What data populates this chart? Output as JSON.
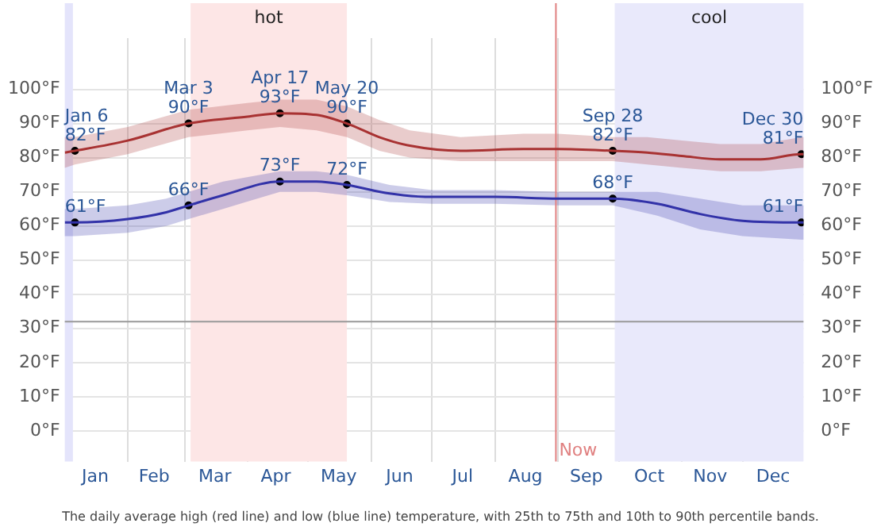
{
  "chart_data": {
    "type": "line",
    "xlim": [
      "--01-01",
      "--12-31"
    ],
    "xticks": [
      {
        "value": "--01-16",
        "label": "Jan"
      },
      {
        "value": "--02-01",
        "label": null
      },
      {
        "value": "--02-14",
        "label": "Feb"
      },
      {
        "value": "--03-01",
        "label": null
      },
      {
        "value": "--03-16",
        "label": "Mar"
      },
      {
        "value": "--04-01",
        "label": null
      },
      {
        "value": "--04-15",
        "label": "Apr"
      },
      {
        "value": "--05-01",
        "label": null
      },
      {
        "value": "--05-16",
        "label": "May"
      },
      {
        "value": "--06-01",
        "label": null
      },
      {
        "value": "--06-15",
        "label": "Jun"
      },
      {
        "value": "--07-01",
        "label": null
      },
      {
        "value": "--07-16",
        "label": "Jul"
      },
      {
        "value": "--08-01",
        "label": null
      },
      {
        "value": "--08-16",
        "label": "Aug"
      },
      {
        "value": "--09-01",
        "label": null
      },
      {
        "value": "--09-15",
        "label": "Sep"
      },
      {
        "value": "--10-01",
        "label": null
      },
      {
        "value": "--10-16",
        "label": "Oct"
      },
      {
        "value": "--11-01",
        "label": null
      },
      {
        "value": "--11-15",
        "label": "Nov"
      },
      {
        "value": "--12-01",
        "label": null
      },
      {
        "value": "--12-16",
        "label": "Dec"
      }
    ],
    "ylim": [
      -9,
      115
    ],
    "yticks": [
      {
        "value": 0,
        "label": "0°F"
      },
      {
        "value": 10,
        "label": "10°F"
      },
      {
        "value": 20,
        "label": "20°F"
      },
      {
        "value": 30,
        "label": "30°F"
      },
      {
        "value": 40,
        "label": "40°F"
      },
      {
        "value": 50,
        "label": "50°F"
      },
      {
        "value": 60,
        "label": "60°F"
      },
      {
        "value": 70,
        "label": "70°F"
      },
      {
        "value": 80,
        "label": "80°F"
      },
      {
        "value": 90,
        "label": "90°F"
      },
      {
        "value": 100,
        "label": "100°F"
      }
    ],
    "y2lim": [
      -9,
      115
    ],
    "y2ticks": [
      {
        "value": 0,
        "label": "0°F"
      },
      {
        "value": 10,
        "label": "10°F"
      },
      {
        "value": 20,
        "label": "20°F"
      },
      {
        "value": 30,
        "label": "30°F"
      },
      {
        "value": 40,
        "label": "40°F"
      },
      {
        "value": 50,
        "label": "50°F"
      },
      {
        "value": 60,
        "label": "60°F"
      },
      {
        "value": 70,
        "label": "70°F"
      },
      {
        "value": 80,
        "label": "80°F"
      },
      {
        "value": 90,
        "label": "90°F"
      },
      {
        "value": 100,
        "label": "100°F"
      }
    ],
    "grid": true,
    "legend": false,
    "marker": "none",
    "line_style": "solid",
    "series": [
      {
        "color": "#a83232",
        "x": [
          "--01-01",
          "--01-06",
          "--02-01",
          "--03-03",
          "--04-01",
          "--04-17",
          "--05-05",
          "--05-20",
          "--06-05",
          "--06-20",
          "--07-15",
          "--08-15",
          "--09-01",
          "--09-28",
          "--10-15",
          "--11-01",
          "--11-20",
          "--12-10",
          "--12-30",
          "--12-31"
        ],
        "values": [
          81.5,
          82,
          85,
          90,
          92,
          93,
          92.5,
          90,
          86,
          83.5,
          82,
          82.5,
          82.5,
          82,
          81.5,
          80.5,
          79.5,
          79.5,
          81,
          81
        ],
        "lower": [
          77,
          78,
          81,
          86,
          88,
          89,
          88,
          86,
          82,
          80,
          79,
          79,
          79,
          79,
          78,
          77,
          76,
          76,
          77,
          77
        ],
        "upper": [
          86,
          86,
          89,
          94,
          96,
          97,
          97,
          95,
          91,
          88,
          86,
          87,
          87,
          86,
          86,
          85,
          84,
          84,
          86,
          86
        ]
      },
      {
        "color": "#3232a8",
        "x": [
          "--01-01",
          "--01-06",
          "--02-01",
          "--02-20",
          "--03-03",
          "--03-20",
          "--04-17",
          "--05-05",
          "--05-20",
          "--06-10",
          "--07-01",
          "--08-01",
          "--09-01",
          "--09-28",
          "--10-20",
          "--11-10",
          "--12-01",
          "--12-30",
          "--12-31"
        ],
        "values": [
          61,
          61,
          62,
          64,
          66,
          69,
          73,
          73,
          72,
          69.5,
          68.5,
          68.5,
          68,
          68,
          66.5,
          63.5,
          61.5,
          61,
          61
        ],
        "lower": [
          57,
          57,
          58,
          60,
          62,
          65,
          70,
          70,
          69,
          67,
          66.5,
          66.5,
          66,
          66,
          63,
          59,
          57,
          56,
          56
        ],
        "upper": [
          65,
          65,
          66,
          68,
          70,
          73,
          76,
          76,
          75,
          72,
          70.5,
          70.5,
          70,
          70,
          70,
          68,
          66,
          66,
          66
        ]
      },
      {
        "type": "scatter",
        "marker": "circle",
        "color": "#000000",
        "x": [
          "--01-06",
          "--03-03",
          "--04-17",
          "--05-20",
          "--09-28",
          "--12-30",
          "--01-06",
          "--03-03",
          "--04-17",
          "--05-20",
          "--09-28",
          "--12-30"
        ],
        "values": [
          82,
          90,
          93,
          90,
          82,
          81,
          61,
          66,
          73,
          72,
          68,
          61
        ]
      }
    ],
    "ref_lines": [
      {
        "axis": "y",
        "value": 32,
        "label": null,
        "color": "#999999"
      },
      {
        "axis": "x",
        "value": "--08-31",
        "label": "Now",
        "color": "#e08080"
      }
    ],
    "bands": [
      {
        "axis": "x",
        "from": "--01-01",
        "to": "--01-05",
        "label": null,
        "color": "#e4e4fb"
      },
      {
        "axis": "x",
        "from": "--03-04",
        "to": "--05-20",
        "label": "hot",
        "color": "#fde6e6"
      },
      {
        "axis": "x",
        "from": "--09-29",
        "to": "--12-31",
        "label": "cool",
        "color": "#e9e9fb"
      }
    ],
    "annotations": [
      {
        "text": "Jan 6\n82°F",
        "x": "--01-06",
        "y": 82
      },
      {
        "text": "Mar 3\n90°F",
        "x": "--03-03",
        "y": 90
      },
      {
        "text": "Apr 17\n93°F",
        "x": "--04-17",
        "y": 93
      },
      {
        "text": "May 20\n90°F",
        "x": "--05-20",
        "y": 90
      },
      {
        "text": "Sep 28\n82°F",
        "x": "--09-28",
        "y": 82
      },
      {
        "text": "Dec 30\n81°F",
        "x": "--12-30",
        "y": 81
      },
      {
        "text": "61°F",
        "x": "--01-06",
        "y": 61
      },
      {
        "text": "66°F",
        "x": "--03-03",
        "y": 66
      },
      {
        "text": "73°F",
        "x": "--04-17",
        "y": 73
      },
      {
        "text": "72°F",
        "x": "--05-20",
        "y": 72
      },
      {
        "text": "68°F",
        "x": "--09-28",
        "y": 68
      },
      {
        "text": "61°F",
        "x": "--12-30",
        "y": 61
      },
      "The daily average high (red line) and low (blue line) temperature, with 25th to 75th and 10th to 90th percentile bands."
    ]
  }
}
